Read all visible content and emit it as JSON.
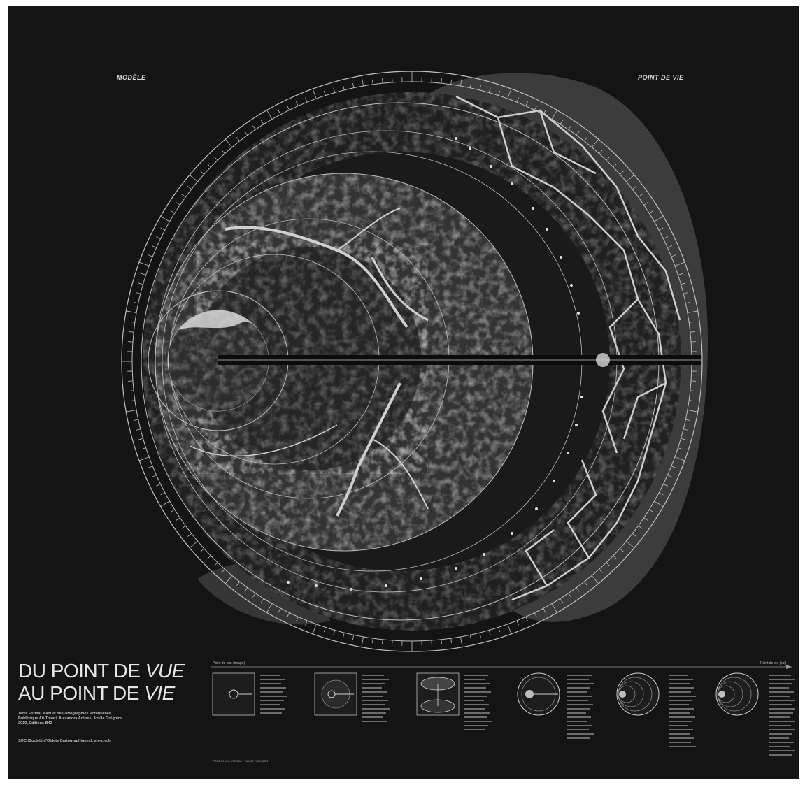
{
  "poster": {
    "label_left": "MODÈLE",
    "label_right": "POINT DE VIE",
    "title_line1_prefix": "DU POINT DE ",
    "title_line1_emph": "VUE",
    "title_line2_prefix": "AU POINT DE ",
    "title_line2_emph": "VIE",
    "credits": [
      "Terra Forma, Manuel de Cartographies Potentielles",
      "Frédérique Aït-Touati, Alexandra Arènes, Axelle Grégoire",
      "2019, Éditions B42"
    ],
    "publisher": "SOC (Société d'Objets Cartographiques), s-o-c-o.fr",
    "legend_caption_left": "Point de vue (image)",
    "legend_caption_right": "Point de vie (sol)",
    "legend_note": "Point de vue vertical = vue de nulle part"
  },
  "colors": {
    "background": "#141414",
    "ink": "#e6e6e6",
    "ring_stroke": "#bfbfbf",
    "terrain": "#4a4a4a"
  }
}
